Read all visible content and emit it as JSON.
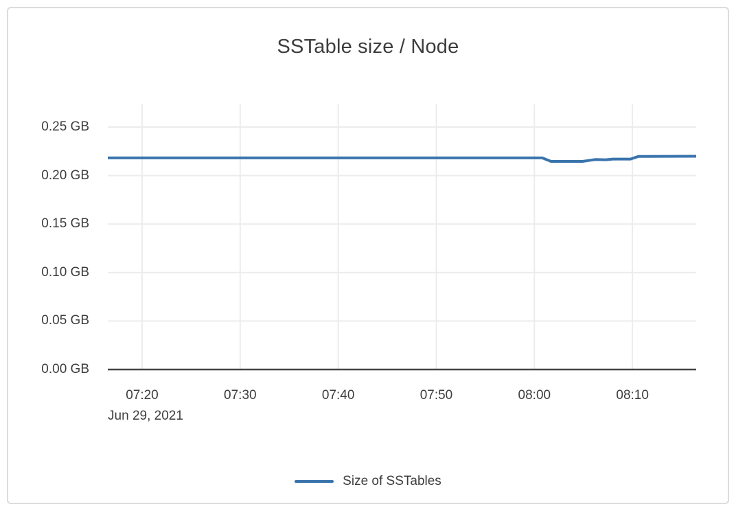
{
  "colors": {
    "grid": "#ececec",
    "axis": "#444444",
    "text": "#3d3d3d",
    "card_border": "#dcdcdc",
    "background": "#ffffff",
    "series_blue": "#3a74ad"
  },
  "chart_data": {
    "type": "line",
    "title": "SSTable size / Node",
    "xlabel": "",
    "ylabel": "",
    "grid": true,
    "legend_position": "bottom-center",
    "x_axis": {
      "date_label": "Jun 29, 2021",
      "range_minutes": [
        436.5,
        496.5
      ],
      "ticks": [
        {
          "m": 440,
          "label": "07:20"
        },
        {
          "m": 450,
          "label": "07:30"
        },
        {
          "m": 460,
          "label": "07:40"
        },
        {
          "m": 470,
          "label": "07:50"
        },
        {
          "m": 480,
          "label": "08:00"
        },
        {
          "m": 490,
          "label": "08:10"
        }
      ]
    },
    "y_axis": {
      "unit": "GB",
      "range_gb": [
        0,
        0.2734
      ],
      "ticks": [
        {
          "v": 0.25,
          "label": "0.25 GB"
        },
        {
          "v": 0.2,
          "label": "0.20 GB"
        },
        {
          "v": 0.15,
          "label": "0.15 GB"
        },
        {
          "v": 0.1,
          "label": "0.10 GB"
        },
        {
          "v": 0.05,
          "label": "0.05 GB"
        },
        {
          "v": 0.0,
          "label": "0.00 GB"
        }
      ]
    },
    "series": [
      {
        "name": "Size of SSTables",
        "color": "#3a74ad",
        "points_time_gb": [
          [
            436.5,
            0.2182
          ],
          [
            480.8,
            0.2182
          ],
          [
            481.7,
            0.2146
          ],
          [
            484.9,
            0.2146
          ],
          [
            486.2,
            0.2165
          ],
          [
            487.3,
            0.2163
          ],
          [
            488.0,
            0.217
          ],
          [
            489.8,
            0.217
          ],
          [
            490.6,
            0.2197
          ],
          [
            496.5,
            0.2199
          ]
        ]
      }
    ]
  }
}
